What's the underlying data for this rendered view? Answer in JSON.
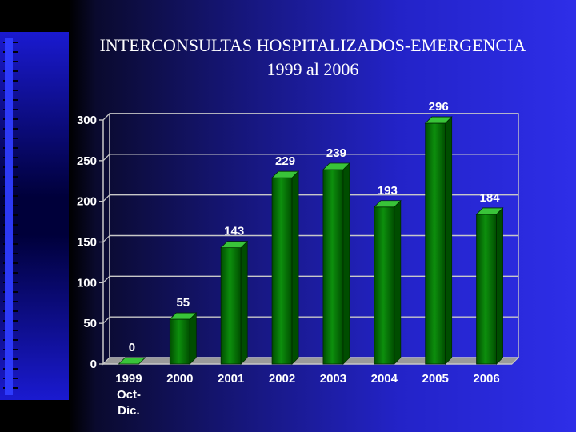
{
  "title_line1": "INTERCONSULTAS HOSPITALIZADOS-EMERGENCIA",
  "title_line2": "1999 al 2006",
  "chart_data": {
    "type": "bar",
    "categories": [
      "1999 Oct-Dic.",
      "2000",
      "2001",
      "2002",
      "2003",
      "2004",
      "2005",
      "2006"
    ],
    "category_lines": [
      [
        "1999",
        "Oct-",
        "Dic."
      ],
      [
        "2000"
      ],
      [
        "2001"
      ],
      [
        "2002"
      ],
      [
        "2003"
      ],
      [
        "2004"
      ],
      [
        "2005"
      ],
      [
        "2006"
      ]
    ],
    "values": [
      0,
      55,
      143,
      229,
      239,
      193,
      296,
      184
    ],
    "ylim": [
      0,
      300
    ],
    "yticks": [
      0,
      50,
      100,
      150,
      200,
      250,
      300
    ],
    "grid": true,
    "legend": "none",
    "colors": {
      "bar_front": "#0d8f0d",
      "bar_dark": "#004d00",
      "bar_light": "#39c439",
      "grid": "#c8c8c8",
      "text": "#ffffff",
      "floor": "#9a9a9a"
    }
  }
}
